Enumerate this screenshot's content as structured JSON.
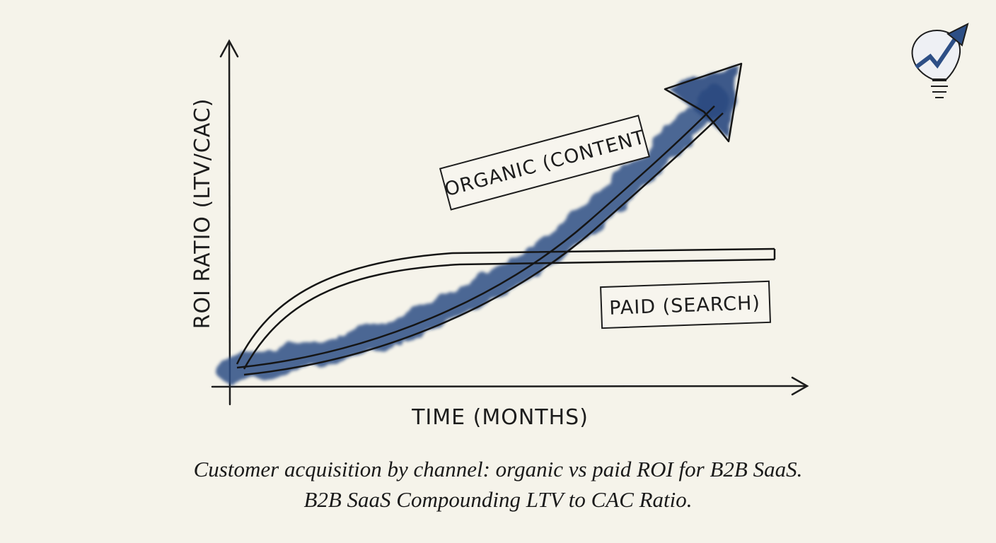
{
  "axes": {
    "y_label": "ROI RATIO (LTV/CAC)",
    "x_label": "TIME (MONTHS)"
  },
  "lines": [
    {
      "label": "ORGANIC (CONTENT"
    },
    {
      "label": "PAID (SEARCH)"
    }
  ],
  "caption": {
    "lines": [
      "Customer acquisition by channel: organic vs paid ROI for B2B SaaS.",
      "B2B SaaS Compounding LTV to CAC Ratio."
    ]
  }
}
